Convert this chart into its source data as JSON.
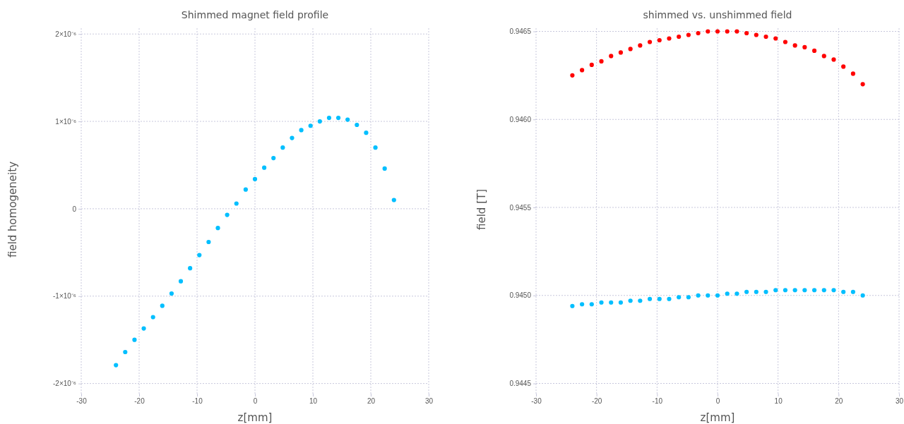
{
  "chart_data": [
    {
      "type": "scatter",
      "title": "Shimmed magnet field profile",
      "xlabel": "z[mm]",
      "ylabel": "field homogeneity",
      "grid": true,
      "marker": "circle",
      "xlim": [
        -30,
        30
      ],
      "xticks": [
        -30,
        -20,
        -10,
        0,
        10,
        20,
        30
      ],
      "ylim": [
        -2.1e-06,
        2.05e-06
      ],
      "yticks": [
        {
          "value": -2e-06,
          "label": "-2×10⁻⁶"
        },
        {
          "value": -1e-06,
          "label": "-1×10⁻⁶"
        },
        0,
        {
          "value": 1e-06,
          "label": "1×10⁻⁶"
        },
        {
          "value": 2e-06,
          "label": "2×10⁻⁶"
        }
      ],
      "x": [
        -24,
        -22.4,
        -20.8,
        -19.2,
        -17.6,
        -16,
        -14.4,
        -12.8,
        -11.2,
        -9.6,
        -8,
        -6.4,
        -4.8,
        -3.2,
        -1.6,
        0,
        1.6,
        3.2,
        4.8,
        6.4,
        8,
        9.6,
        11.2,
        12.8,
        14.4,
        16,
        17.6,
        19.2,
        20.8,
        22.4,
        24
      ],
      "series": [
        {
          "color": "#00bfff",
          "values": [
            -1.79e-06,
            -1.64e-06,
            -1.5e-06,
            -1.37e-06,
            -1.24e-06,
            -1.11e-06,
            -9.7e-07,
            -8.3e-07,
            -6.8e-07,
            -5.3e-07,
            -3.8e-07,
            -2.2e-07,
            -7e-08,
            6e-08,
            2.2e-07,
            3.4e-07,
            4.7e-07,
            5.8e-07,
            7e-07,
            8.1e-07,
            9e-07,
            9.5e-07,
            1e-06,
            1.04e-06,
            1.04e-06,
            1.02e-06,
            9.6e-07,
            8.7e-07,
            7e-07,
            4.6e-07,
            1e-07
          ]
        }
      ]
    },
    {
      "type": "scatter",
      "title": "shimmed vs. unshimmed field",
      "xlabel": "z[mm]",
      "ylabel": "field [T]",
      "grid": true,
      "marker": "circle",
      "xlim": [
        -30,
        30
      ],
      "xticks": [
        -30,
        -20,
        -10,
        0,
        10,
        20,
        30
      ],
      "ylim": [
        0.94445,
        0.94651
      ],
      "yticks": [
        {
          "value": 0.9445,
          "label": "0.9445"
        },
        {
          "value": 0.945,
          "label": "0.9450"
        },
        {
          "value": 0.9455,
          "label": "0.9455"
        },
        {
          "value": 0.946,
          "label": "0.9460"
        },
        {
          "value": 0.9465,
          "label": "0.9465"
        }
      ],
      "x": [
        -24,
        -22.4,
        -20.8,
        -19.2,
        -17.6,
        -16,
        -14.4,
        -12.8,
        -11.2,
        -9.6,
        -8,
        -6.4,
        -4.8,
        -3.2,
        -1.6,
        0,
        1.6,
        3.2,
        4.8,
        6.4,
        8,
        9.6,
        11.2,
        12.8,
        14.4,
        16,
        17.6,
        19.2,
        20.8,
        22.4,
        24
      ],
      "series": [
        {
          "color": "#ff0000",
          "values": [
            0.94625,
            0.94628,
            0.94631,
            0.94633,
            0.94636,
            0.94638,
            0.9464,
            0.94642,
            0.94644,
            0.94645,
            0.94646,
            0.94647,
            0.94648,
            0.94649,
            0.9465,
            0.9465,
            0.9465,
            0.9465,
            0.94649,
            0.94648,
            0.94647,
            0.94646,
            0.94644,
            0.94642,
            0.94641,
            0.94639,
            0.94636,
            0.94634,
            0.9463,
            0.94626,
            0.9462
          ]
        },
        {
          "color": "#00bfff",
          "values": [
            0.94494,
            0.94495,
            0.94495,
            0.94496,
            0.94496,
            0.94496,
            0.94497,
            0.94497,
            0.94498,
            0.94498,
            0.94498,
            0.94499,
            0.94499,
            0.945,
            0.945,
            0.945,
            0.94501,
            0.94501,
            0.94502,
            0.94502,
            0.94502,
            0.94503,
            0.94503,
            0.94503,
            0.94503,
            0.94503,
            0.94503,
            0.94503,
            0.94502,
            0.94502,
            0.945
          ]
        }
      ]
    }
  ]
}
